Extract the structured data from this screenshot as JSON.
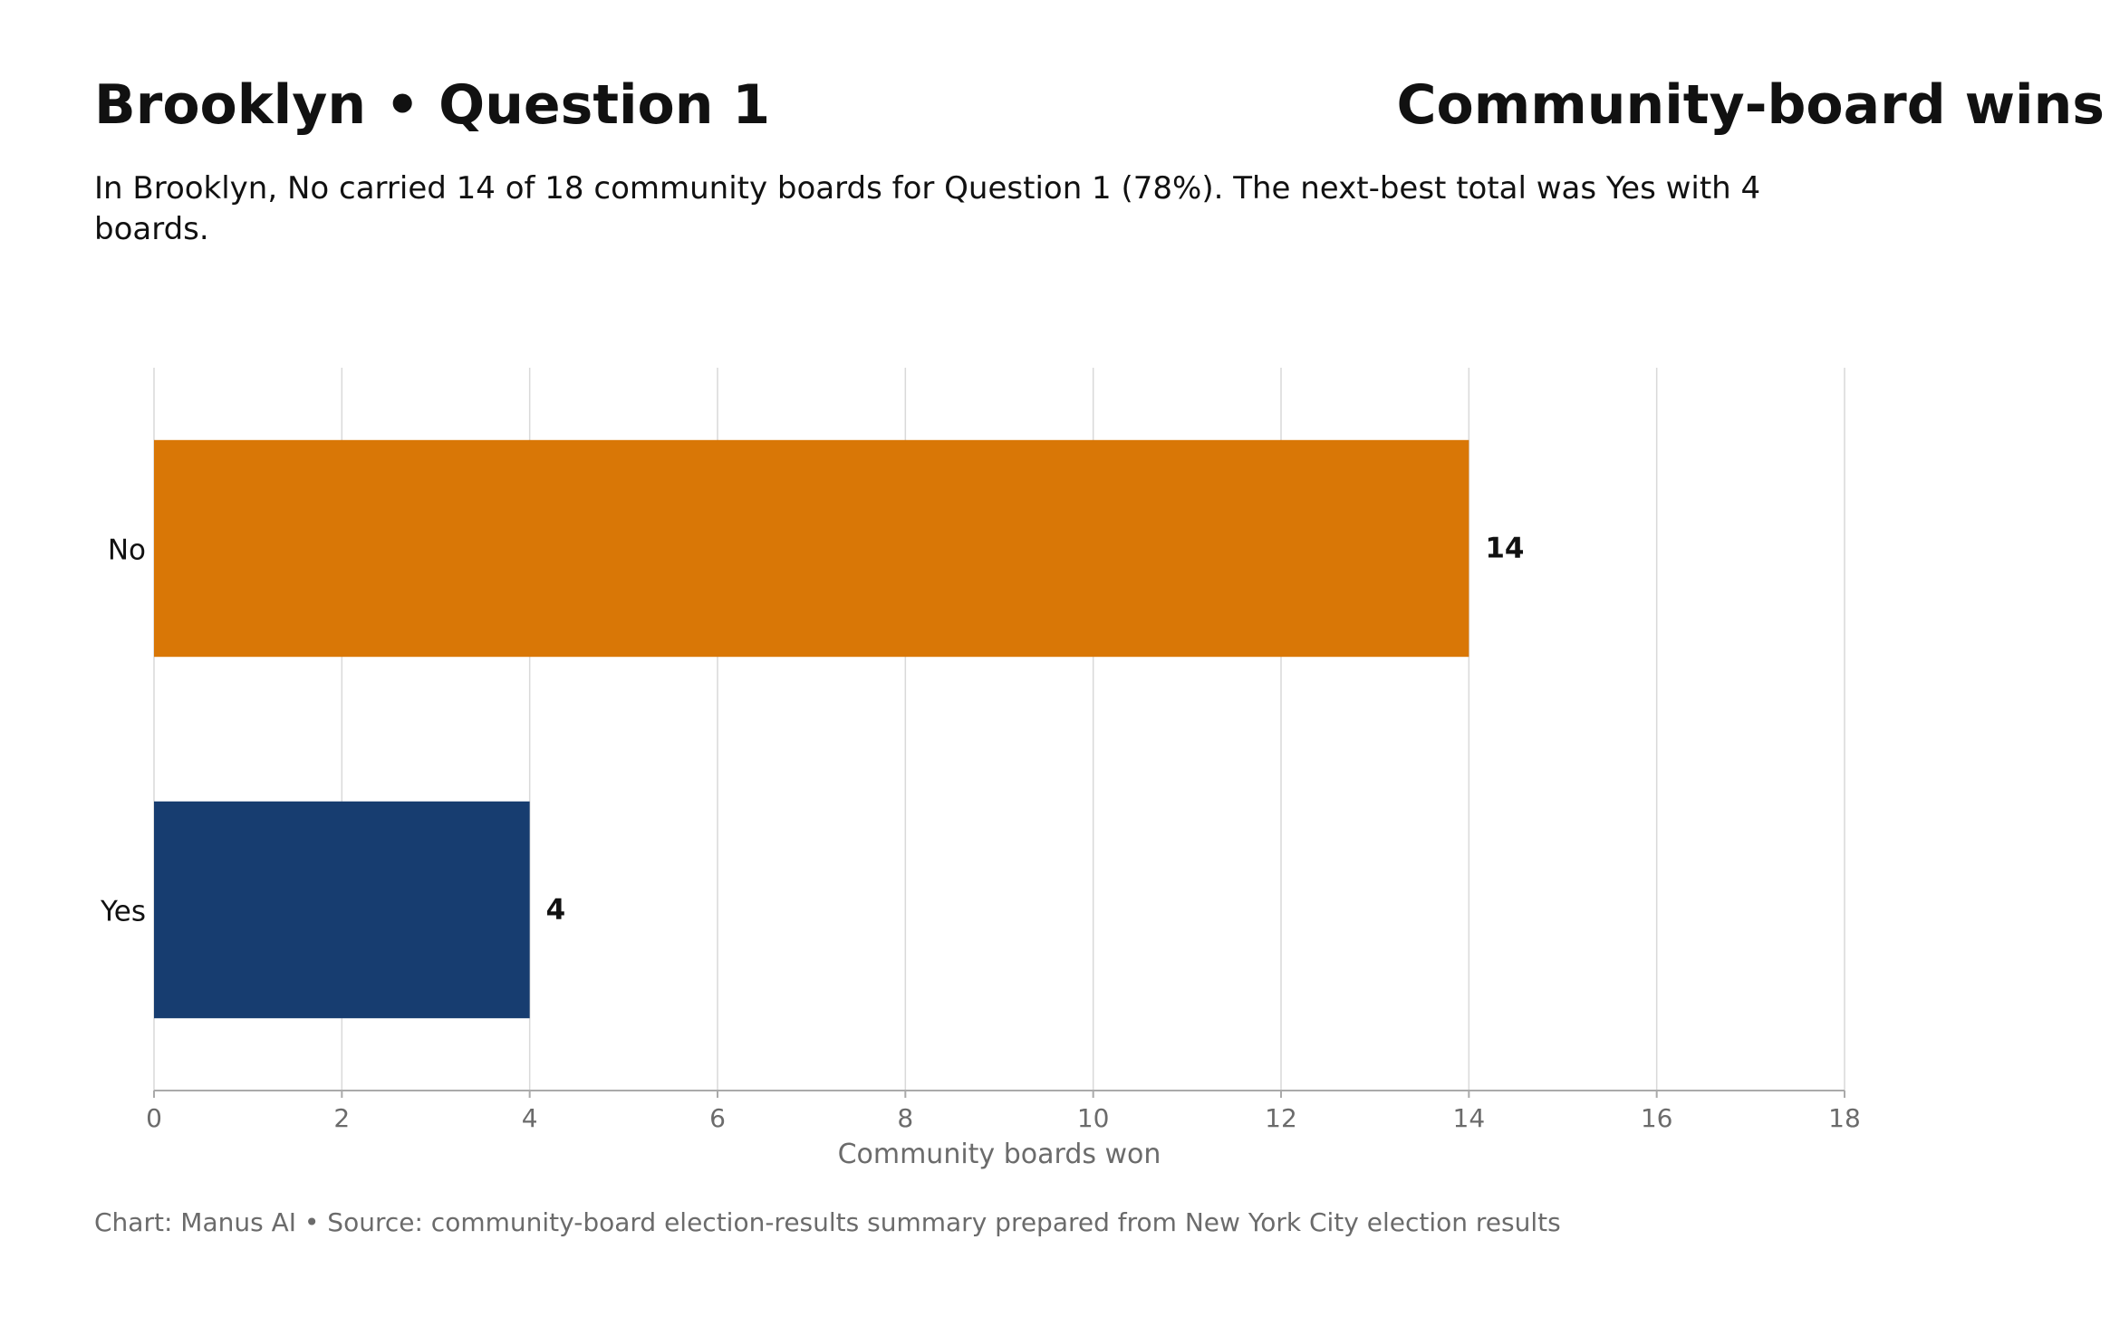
{
  "header": {
    "title": "Brooklyn • Question 1",
    "right_title": "Community-board wins",
    "subtitle": "In Brooklyn, No carried 14 of 18 community boards for Question 1 (78%). The next-best total was Yes with 4 boards."
  },
  "footer": {
    "source": "Chart: Manus AI • Source: community-board election-results summary prepared from New York City election results"
  },
  "chart_data": {
    "type": "bar",
    "orientation": "horizontal",
    "categories": [
      "No",
      "Yes"
    ],
    "values": [
      14,
      4
    ],
    "data_labels": [
      "14",
      "4"
    ],
    "colors": [
      "#d97706",
      "#173d70"
    ],
    "xlabel": "Community boards won",
    "ylabel": "",
    "xlim": [
      0,
      18
    ],
    "xticks": [
      0,
      2,
      4,
      6,
      8,
      10,
      12,
      14,
      16,
      18
    ],
    "grid": "vertical",
    "legend": "none"
  }
}
